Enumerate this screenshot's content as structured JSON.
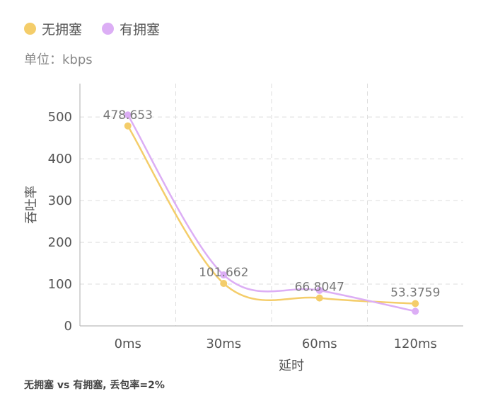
{
  "legend": [
    {
      "label": "无拥塞",
      "color": "#F4CD6A"
    },
    {
      "label": "有拥塞",
      "color": "#DCAEF5"
    }
  ],
  "unit_label": "单位：kbps",
  "caption": "无拥塞 vs 有拥塞, 丢包率=2%",
  "chart_data": {
    "type": "line",
    "categories": [
      "0ms",
      "30ms",
      "60ms",
      "120ms"
    ],
    "series": [
      {
        "name": "无拥塞",
        "values": [
          478.653,
          101.662,
          66.8047,
          53.3759
        ],
        "color": "#F4CD6A"
      },
      {
        "name": "有拥塞",
        "values": [
          505,
          122,
          85,
          35
        ],
        "color": "#DCAEF5"
      }
    ],
    "data_labels": [
      "478.653",
      "101.662",
      "66.8047",
      "53.3759"
    ],
    "xlabel": "延时",
    "ylabel": "吞吐率",
    "ylim": [
      0,
      580
    ],
    "yticks": [
      0,
      100,
      200,
      300,
      400,
      500
    ],
    "grid": true,
    "legend_position": "top-left"
  }
}
